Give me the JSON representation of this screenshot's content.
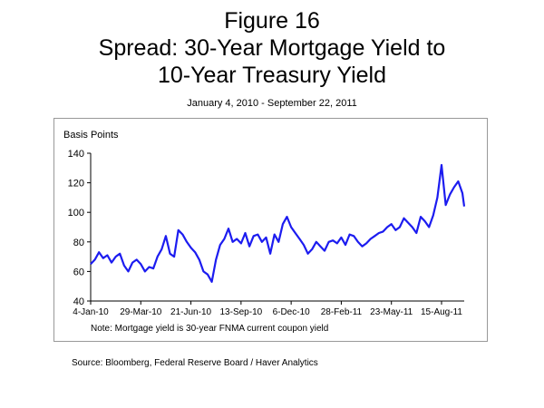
{
  "figure": {
    "title_line1": "Figure 16",
    "title_line2": "Spread:  30-Year Mortgage Yield to",
    "title_line3": "10-Year Treasury Yield",
    "subtitle": "January 4, 2010 - September 22, 2011",
    "note": "Note:  Mortgage yield is 30-year FNMA current coupon yield",
    "source": "Source:  Bloomberg, Federal Reserve Board / Haver Analytics"
  },
  "chart_data": {
    "type": "line",
    "title": "Spread:  30-Year Mortgage Yield to 10-Year Treasury Yield",
    "xlabel": "",
    "ylabel": "Basis Points",
    "ylim": [
      40,
      140
    ],
    "yticks": [
      40,
      60,
      80,
      100,
      120,
      140
    ],
    "xlim": [
      "2010-01-04",
      "2011-09-22"
    ],
    "xticks": [
      "4-Jan-10",
      "29-Mar-10",
      "21-Jun-10",
      "13-Sep-10",
      "6-Dec-10",
      "28-Feb-11",
      "23-May-11",
      "15-Aug-11"
    ],
    "grid": false,
    "legend": "none",
    "line_color": "#1c1cf0",
    "series": [
      {
        "x": [
          "2010-01-04",
          "2010-01-11",
          "2010-01-18",
          "2010-01-25",
          "2010-02-01",
          "2010-02-08",
          "2010-02-15",
          "2010-02-22",
          "2010-03-01",
          "2010-03-08",
          "2010-03-15",
          "2010-03-22",
          "2010-03-29",
          "2010-04-05",
          "2010-04-12",
          "2010-04-19",
          "2010-04-26",
          "2010-05-03",
          "2010-05-10",
          "2010-05-17",
          "2010-05-24",
          "2010-05-31",
          "2010-06-07",
          "2010-06-14",
          "2010-06-21",
          "2010-06-28",
          "2010-07-05",
          "2010-07-12",
          "2010-07-19",
          "2010-07-26",
          "2010-08-02",
          "2010-08-09",
          "2010-08-16",
          "2010-08-23",
          "2010-08-30",
          "2010-09-06",
          "2010-09-13",
          "2010-09-20",
          "2010-09-27",
          "2010-10-04",
          "2010-10-11",
          "2010-10-18",
          "2010-10-25",
          "2010-11-01",
          "2010-11-08",
          "2010-11-15",
          "2010-11-22",
          "2010-11-29",
          "2010-12-06",
          "2010-12-13",
          "2010-12-20",
          "2010-12-27",
          "2011-01-03",
          "2011-01-10",
          "2011-01-17",
          "2011-01-24",
          "2011-01-31",
          "2011-02-07",
          "2011-02-14",
          "2011-02-21",
          "2011-02-28",
          "2011-03-07",
          "2011-03-14",
          "2011-03-21",
          "2011-03-28",
          "2011-04-04",
          "2011-04-11",
          "2011-04-18",
          "2011-04-25",
          "2011-05-02",
          "2011-05-09",
          "2011-05-16",
          "2011-05-23",
          "2011-05-30",
          "2011-06-06",
          "2011-06-13",
          "2011-06-20",
          "2011-06-27",
          "2011-07-04",
          "2011-07-11",
          "2011-07-18",
          "2011-07-25",
          "2011-08-01",
          "2011-08-08",
          "2011-08-15",
          "2011-08-22",
          "2011-08-29",
          "2011-09-05",
          "2011-09-12",
          "2011-09-19",
          "2011-09-22"
        ],
        "values": [
          65,
          68,
          73,
          69,
          71,
          66,
          70,
          72,
          64,
          60,
          66,
          68,
          65,
          60,
          63,
          62,
          70,
          75,
          84,
          72,
          70,
          88,
          85,
          80,
          76,
          73,
          68,
          60,
          58,
          53,
          68,
          78,
          82,
          89,
          80,
          82,
          79,
          86,
          77,
          84,
          85,
          80,
          83,
          72,
          85,
          80,
          92,
          97,
          90,
          86,
          82,
          78,
          72,
          75,
          80,
          77,
          74,
          80,
          81,
          79,
          83,
          78,
          85,
          84,
          80,
          77,
          79,
          82,
          84,
          86,
          87,
          90,
          92,
          88,
          90,
          96,
          93,
          90,
          86,
          97,
          94,
          90,
          98,
          110,
          132,
          105,
          112,
          117,
          121,
          113,
          104
        ]
      }
    ]
  }
}
